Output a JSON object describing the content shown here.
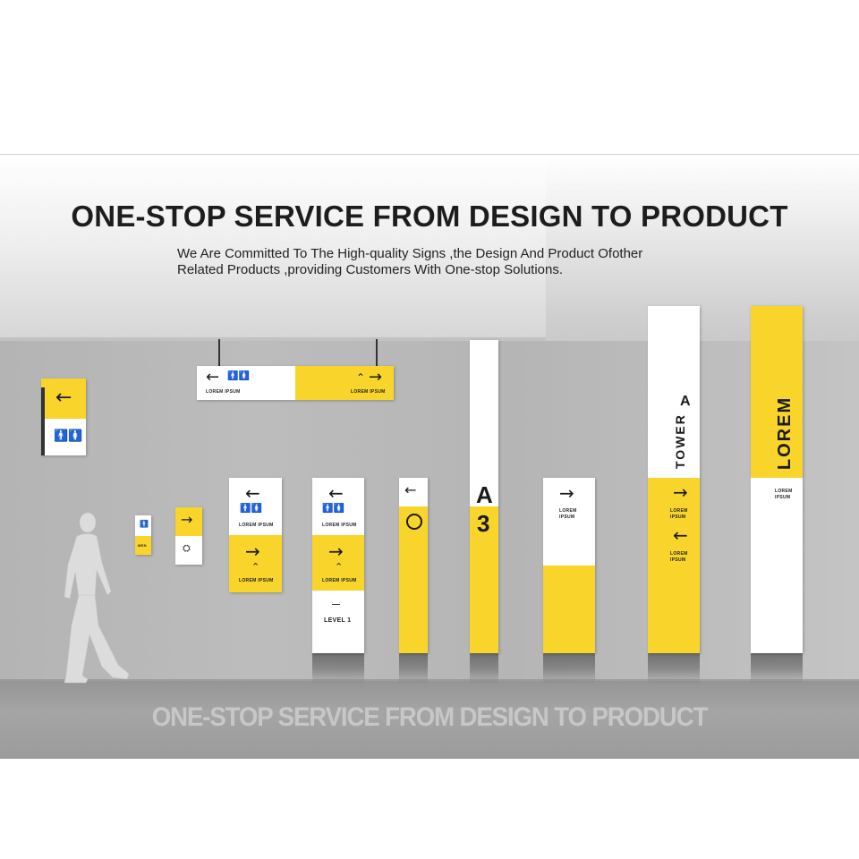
{
  "header": {
    "title": "ONE-STOP SERVICE FROM DESIGN TO PRODUCT",
    "subtitle_line1": "We Are Committed To The High-quality Signs ,the Design And Product Ofother",
    "subtitle_line2": "Related Products ,providing Customers With One-stop Solutions."
  },
  "footer": {
    "reflection_text": "ONE-STOP SERVICE FROM DESIGN TO PRODUCT"
  },
  "signs": {
    "arrow_left": "←",
    "arrow_right": "→",
    "restroom_icons": "🚹🚺",
    "escalator_icon": "⛭",
    "hanger_icon": "⌃",
    "lorem_ipsum": "LOREM IPSUM",
    "lorem_line1": "LOREM",
    "lorem_line2": "IPSUM",
    "level": "LEVEL 1",
    "dash": "—",
    "men": "MEN",
    "block_letter": "A",
    "block_number": "3",
    "tower": "TOWER",
    "tower_letter": "A",
    "lorem_big": "LOREM"
  },
  "colors": {
    "accent_yellow": "#f9d52b",
    "sign_white": "#ffffff",
    "text_dark": "#1a1a1a"
  }
}
